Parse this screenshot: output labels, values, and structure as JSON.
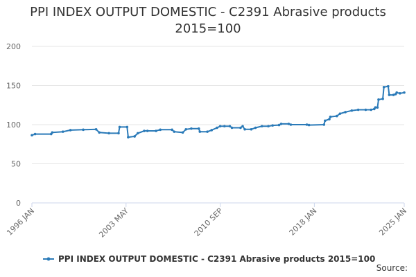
{
  "chart_data": {
    "type": "line",
    "title": "PPI INDEX OUTPUT DOMESTIC - C2391 Abrasive products 2015=100",
    "source": "Source:",
    "x": [
      "1996 JAN",
      "1996 APR",
      "1997 JUL",
      "1997 AUG",
      "1998 JUN",
      "1999 JAN",
      "2000 JAN",
      "2001 JAN",
      "2001 APR",
      "2002 JAN",
      "2002 OCT",
      "2002 NOV",
      "2003 JUN",
      "2003 JUL",
      "2004 JAN",
      "2004 APR",
      "2004 OCT",
      "2005 JAN",
      "2005 SEP",
      "2006 JAN",
      "2006 DEC",
      "2007 FEB",
      "2007 OCT",
      "2008 JAN",
      "2008 JUN",
      "2009 JAN",
      "2009 FEB",
      "2009 SEP",
      "2010 JAN",
      "2010 JUN",
      "2010 SEP",
      "2011 JAN",
      "2011 JUN",
      "2011 AUG",
      "2012 APR",
      "2012 JUN",
      "2012 AUG",
      "2013 FEB",
      "2013 JUN",
      "2013 DEC",
      "2014 JUN",
      "2014 OCT",
      "2015 APR",
      "2015 JUN",
      "2016 JAN",
      "2016 MAR",
      "2017 JUN",
      "2017 AUG",
      "2018 OCT",
      "2018 NOV",
      "2019 MAR",
      "2019 APR",
      "2019 OCT",
      "2020 JAN",
      "2020 JUN",
      "2020 DEC",
      "2021 JUN",
      "2022 JAN",
      "2022 JUN",
      "2022 SEP",
      "2022 OCT",
      "2022 DEC",
      "2023 JAN",
      "2023 MAY",
      "2023 JUN",
      "2023 OCT",
      "2023 NOV",
      "2024 MAR",
      "2024 MAY",
      "2024 JUN",
      "2024 SEP",
      "2025 JAN"
    ],
    "series": [
      {
        "name": "PPI INDEX OUTPUT DOMESTIC - C2391 Abrasive products 2015=100",
        "color": "#2a7ab8",
        "values": [
          86.5,
          88,
          88,
          90,
          91,
          93,
          93.5,
          94,
          90,
          89,
          89,
          97,
          97,
          84,
          85,
          89,
          92,
          92,
          92,
          93.5,
          93.5,
          91,
          90,
          94,
          95,
          95,
          91,
          91,
          93,
          96,
          98,
          98,
          98,
          96,
          96,
          98,
          94,
          94,
          96,
          98,
          98,
          99,
          99.5,
          101,
          101,
          100,
          100,
          99.5,
          100,
          105,
          107,
          110,
          111,
          114,
          116,
          118,
          119,
          119,
          119,
          120,
          122,
          122,
          132,
          133,
          148,
          149,
          138,
          138,
          139,
          141,
          140,
          141
        ]
      }
    ],
    "xlim": [
      "1996 JAN",
      "2025 JAN"
    ],
    "xticks": [
      "1996 JAN",
      "2003 MAY",
      "2010 SEP",
      "2018 JAN",
      "2025 JAN"
    ],
    "ylim": [
      0,
      200
    ],
    "yticks": [
      0,
      50,
      100,
      150,
      200
    ],
    "grid": true
  }
}
